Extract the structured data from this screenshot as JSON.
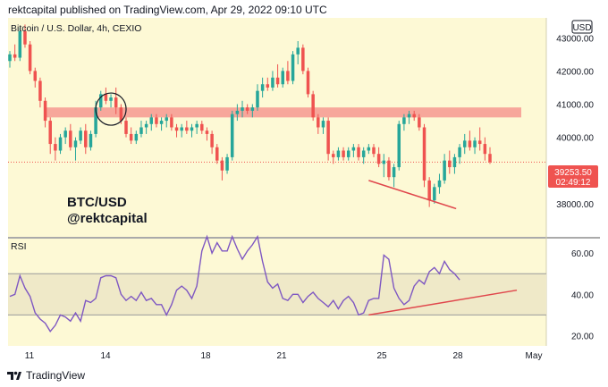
{
  "header": {
    "text": "rektcapital published on TradingView.com, Apr 29, 2022 09:10 UTC"
  },
  "symbol": {
    "text": "Bitcoin / U.S. Dollar, 4h, CEXIO"
  },
  "currency": "USD",
  "price_tag": {
    "price": "39253.50",
    "countdown": "02:49:12"
  },
  "watermark": {
    "line1": "BTC/USD",
    "line2": "@rektcapital"
  },
  "rsi_label": "RSI",
  "footer": {
    "logo_text": "TradingView"
  },
  "colors": {
    "bg": "#fdf9d5",
    "up": "#26a69a",
    "down": "#ef5350",
    "rsi_line": "#7e57c2",
    "rsi_band": "#efe9c8",
    "zone": "#f7a79b",
    "trend": "#e0474c",
    "grid": "#9a9a9a"
  },
  "chart_data": [
    {
      "type": "candlestick",
      "title": "Bitcoin / U.S. Dollar, 4h, CEXIO",
      "x_ticks": [
        "11",
        "14",
        "18",
        "21",
        "25",
        "28",
        "May"
      ],
      "y_ticks": [
        38000,
        39000,
        40000,
        41000,
        42000,
        43000
      ],
      "y_tick_labels": [
        "38000.00",
        "39000.00",
        "40000.00",
        "41000.00",
        "42000.00",
        "43000.00"
      ],
      "ylim": [
        37000,
        43600
      ],
      "last_price": 39253.5,
      "resistance_zone": [
        40600,
        40900
      ],
      "candles": [
        [
          42300,
          42600,
          42100,
          42500
        ],
        [
          42500,
          42800,
          42300,
          42400
        ],
        [
          42400,
          43300,
          42300,
          43200
        ],
        [
          43200,
          43400,
          42700,
          42800
        ],
        [
          42800,
          42900,
          41900,
          42000
        ],
        [
          42000,
          42100,
          41500,
          41700
        ],
        [
          41700,
          41800,
          40900,
          41100
        ],
        [
          41100,
          41200,
          40300,
          40500
        ],
        [
          40500,
          40600,
          39500,
          39800
        ],
        [
          39800,
          40000,
          39300,
          39600
        ],
        [
          39600,
          40100,
          39500,
          40000
        ],
        [
          40000,
          40300,
          39800,
          40200
        ],
        [
          40200,
          40400,
          39600,
          39700
        ],
        [
          39700,
          40000,
          39300,
          39900
        ],
        [
          39900,
          40300,
          39800,
          40200
        ],
        [
          40200,
          40400,
          39500,
          39700
        ],
        [
          39700,
          40200,
          39600,
          40100
        ],
        [
          40100,
          41100,
          40000,
          40900
        ],
        [
          40900,
          41400,
          40800,
          41300
        ],
        [
          41300,
          41500,
          41000,
          41100
        ],
        [
          41100,
          41300,
          40900,
          41200
        ],
        [
          41200,
          41500,
          40700,
          40900
        ],
        [
          40900,
          41000,
          40400,
          40500
        ],
        [
          40500,
          40600,
          40000,
          40100
        ],
        [
          40100,
          40300,
          39800,
          39900
        ],
        [
          39900,
          40200,
          39800,
          40100
        ],
        [
          40100,
          40500,
          40000,
          40300
        ],
        [
          40300,
          40500,
          40100,
          40400
        ],
        [
          40400,
          40700,
          40200,
          40600
        ],
        [
          40600,
          40700,
          40300,
          40400
        ],
        [
          40400,
          40600,
          40200,
          40500
        ],
        [
          40500,
          40700,
          40300,
          40600
        ],
        [
          40600,
          40700,
          40200,
          40300
        ],
        [
          40300,
          40400,
          40000,
          40200
        ],
        [
          40200,
          40400,
          40000,
          40300
        ],
        [
          40300,
          40500,
          40100,
          40200
        ],
        [
          40200,
          40400,
          40000,
          40300
        ],
        [
          40300,
          40500,
          40100,
          40400
        ],
        [
          40400,
          40500,
          40100,
          40200
        ],
        [
          40200,
          40300,
          39900,
          40100
        ],
        [
          40100,
          40200,
          39500,
          39700
        ],
        [
          39700,
          39800,
          39200,
          39300
        ],
        [
          39300,
          39400,
          38700,
          39000
        ],
        [
          39000,
          39500,
          38900,
          39400
        ],
        [
          39400,
          40800,
          39300,
          40700
        ],
        [
          40700,
          41000,
          40500,
          40800
        ],
        [
          40800,
          41100,
          40600,
          40900
        ],
        [
          40900,
          41000,
          40700,
          40800
        ],
        [
          40800,
          41000,
          40600,
          40900
        ],
        [
          40900,
          41600,
          40800,
          41400
        ],
        [
          41400,
          41800,
          41200,
          41600
        ],
        [
          41600,
          41800,
          41400,
          41500
        ],
        [
          41500,
          42000,
          41400,
          41800
        ],
        [
          41800,
          42200,
          41500,
          41600
        ],
        [
          41600,
          42100,
          41500,
          42000
        ],
        [
          42000,
          42300,
          41600,
          41700
        ],
        [
          41700,
          42600,
          41600,
          42500
        ],
        [
          42500,
          42900,
          42200,
          42700
        ],
        [
          42700,
          42800,
          41900,
          42000
        ],
        [
          42000,
          42100,
          41200,
          41300
        ],
        [
          41300,
          41400,
          40500,
          40600
        ],
        [
          40600,
          40700,
          40100,
          40300
        ],
        [
          40300,
          40600,
          40100,
          40500
        ],
        [
          40500,
          40600,
          39300,
          39500
        ],
        [
          39500,
          39600,
          39200,
          39400
        ],
        [
          39400,
          39700,
          39300,
          39600
        ],
        [
          39600,
          39700,
          39300,
          39400
        ],
        [
          39400,
          39700,
          39300,
          39600
        ],
        [
          39600,
          39800,
          39400,
          39700
        ],
        [
          39700,
          39800,
          39300,
          39400
        ],
        [
          39400,
          39700,
          39200,
          39600
        ],
        [
          39600,
          39800,
          39500,
          39700
        ],
        [
          39700,
          39800,
          39400,
          39500
        ],
        [
          39500,
          39700,
          39100,
          39200
        ],
        [
          39200,
          39500,
          38800,
          39300
        ],
        [
          39300,
          39400,
          38700,
          38800
        ],
        [
          38800,
          39200,
          38500,
          39100
        ],
        [
          39100,
          40500,
          39000,
          40400
        ],
        [
          40400,
          40700,
          40200,
          40600
        ],
        [
          40600,
          40800,
          40400,
          40700
        ],
        [
          40700,
          40800,
          40500,
          40600
        ],
        [
          40600,
          40700,
          40200,
          40300
        ],
        [
          40300,
          40400,
          38500,
          38700
        ],
        [
          38700,
          38800,
          37900,
          38100
        ],
        [
          38100,
          38600,
          38000,
          38500
        ],
        [
          38500,
          38900,
          38300,
          38700
        ],
        [
          38700,
          39500,
          38600,
          39300
        ],
        [
          39300,
          39600,
          38900,
          39100
        ],
        [
          39100,
          39500,
          38900,
          39400
        ],
        [
          39400,
          39800,
          39200,
          39700
        ],
        [
          39700,
          40100,
          39500,
          39900
        ],
        [
          39900,
          40200,
          39600,
          39700
        ],
        [
          39700,
          40000,
          39500,
          39900
        ],
        [
          39900,
          40300,
          39600,
          39800
        ],
        [
          39800,
          40000,
          39300,
          39500
        ],
        [
          39500,
          39700,
          39200,
          39250
        ]
      ]
    },
    {
      "type": "line",
      "title": "RSI",
      "y_ticks": [
        20,
        40,
        60
      ],
      "y_tick_labels": [
        "20.00",
        "40.00",
        "60.00"
      ],
      "ylim": [
        15,
        67
      ],
      "band": [
        30,
        50
      ],
      "values": [
        39,
        40,
        49,
        43,
        39,
        31,
        28,
        26,
        22,
        25,
        30,
        29,
        27,
        31,
        27,
        37,
        36,
        38,
        48,
        49,
        49,
        48,
        40,
        37,
        39,
        37,
        41,
        37,
        38,
        35,
        35,
        30,
        35,
        42,
        44,
        42,
        38,
        44,
        61,
        68,
        60,
        65,
        61,
        61,
        68,
        62,
        57,
        61,
        64,
        68,
        56,
        46,
        43,
        45,
        38,
        37,
        40,
        40,
        36,
        39,
        41,
        38,
        36,
        34,
        37,
        33,
        37,
        39,
        36,
        30,
        31,
        37,
        38,
        38,
        59,
        57,
        43,
        38,
        35,
        37,
        44,
        47,
        45,
        51,
        53,
        50,
        56,
        52,
        50,
        47
      ]
    }
  ]
}
